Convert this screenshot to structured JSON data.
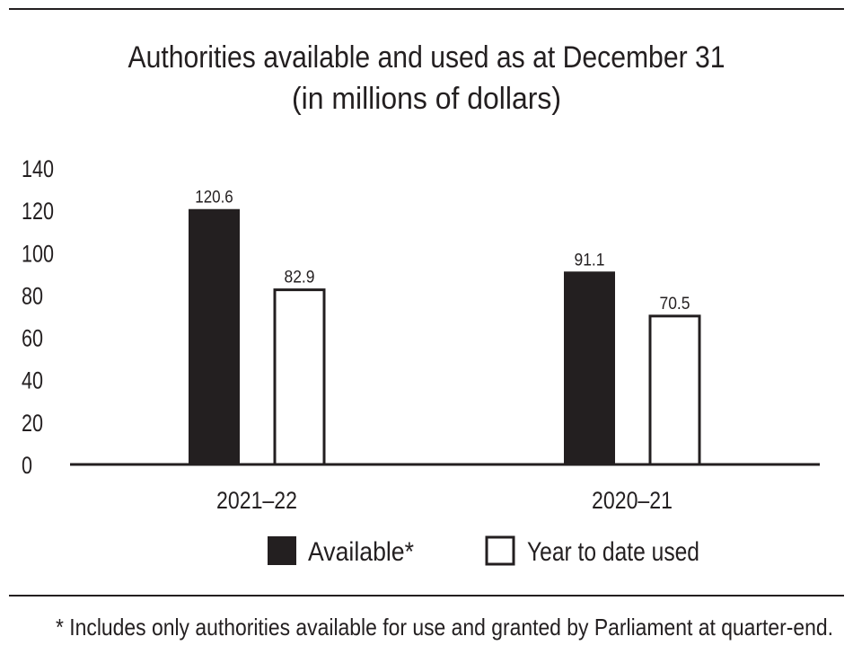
{
  "chart_data": {
    "type": "bar",
    "title": "Authorities available and used as at December 31",
    "subtitle": "(in millions of dollars)",
    "categories": [
      "2021–22",
      "2020–21"
    ],
    "series": [
      {
        "name": "Available*",
        "values": [
          120.6,
          91.1
        ],
        "color": "#231f20"
      },
      {
        "name": "Year to date used",
        "values": [
          82.9,
          70.5
        ],
        "color": "#ffffff"
      }
    ],
    "data_labels": [
      [
        "120.6",
        "91.1"
      ],
      [
        "82.9",
        "70.5"
      ]
    ],
    "yticks": [
      "0",
      "20",
      "40",
      "60",
      "80",
      "100",
      "120",
      "140"
    ],
    "ylim": [
      0,
      140
    ],
    "grid": false,
    "legend": "bottom",
    "footnote": "* Includes only authorities available for use and granted by Parliament at quarter-end."
  }
}
